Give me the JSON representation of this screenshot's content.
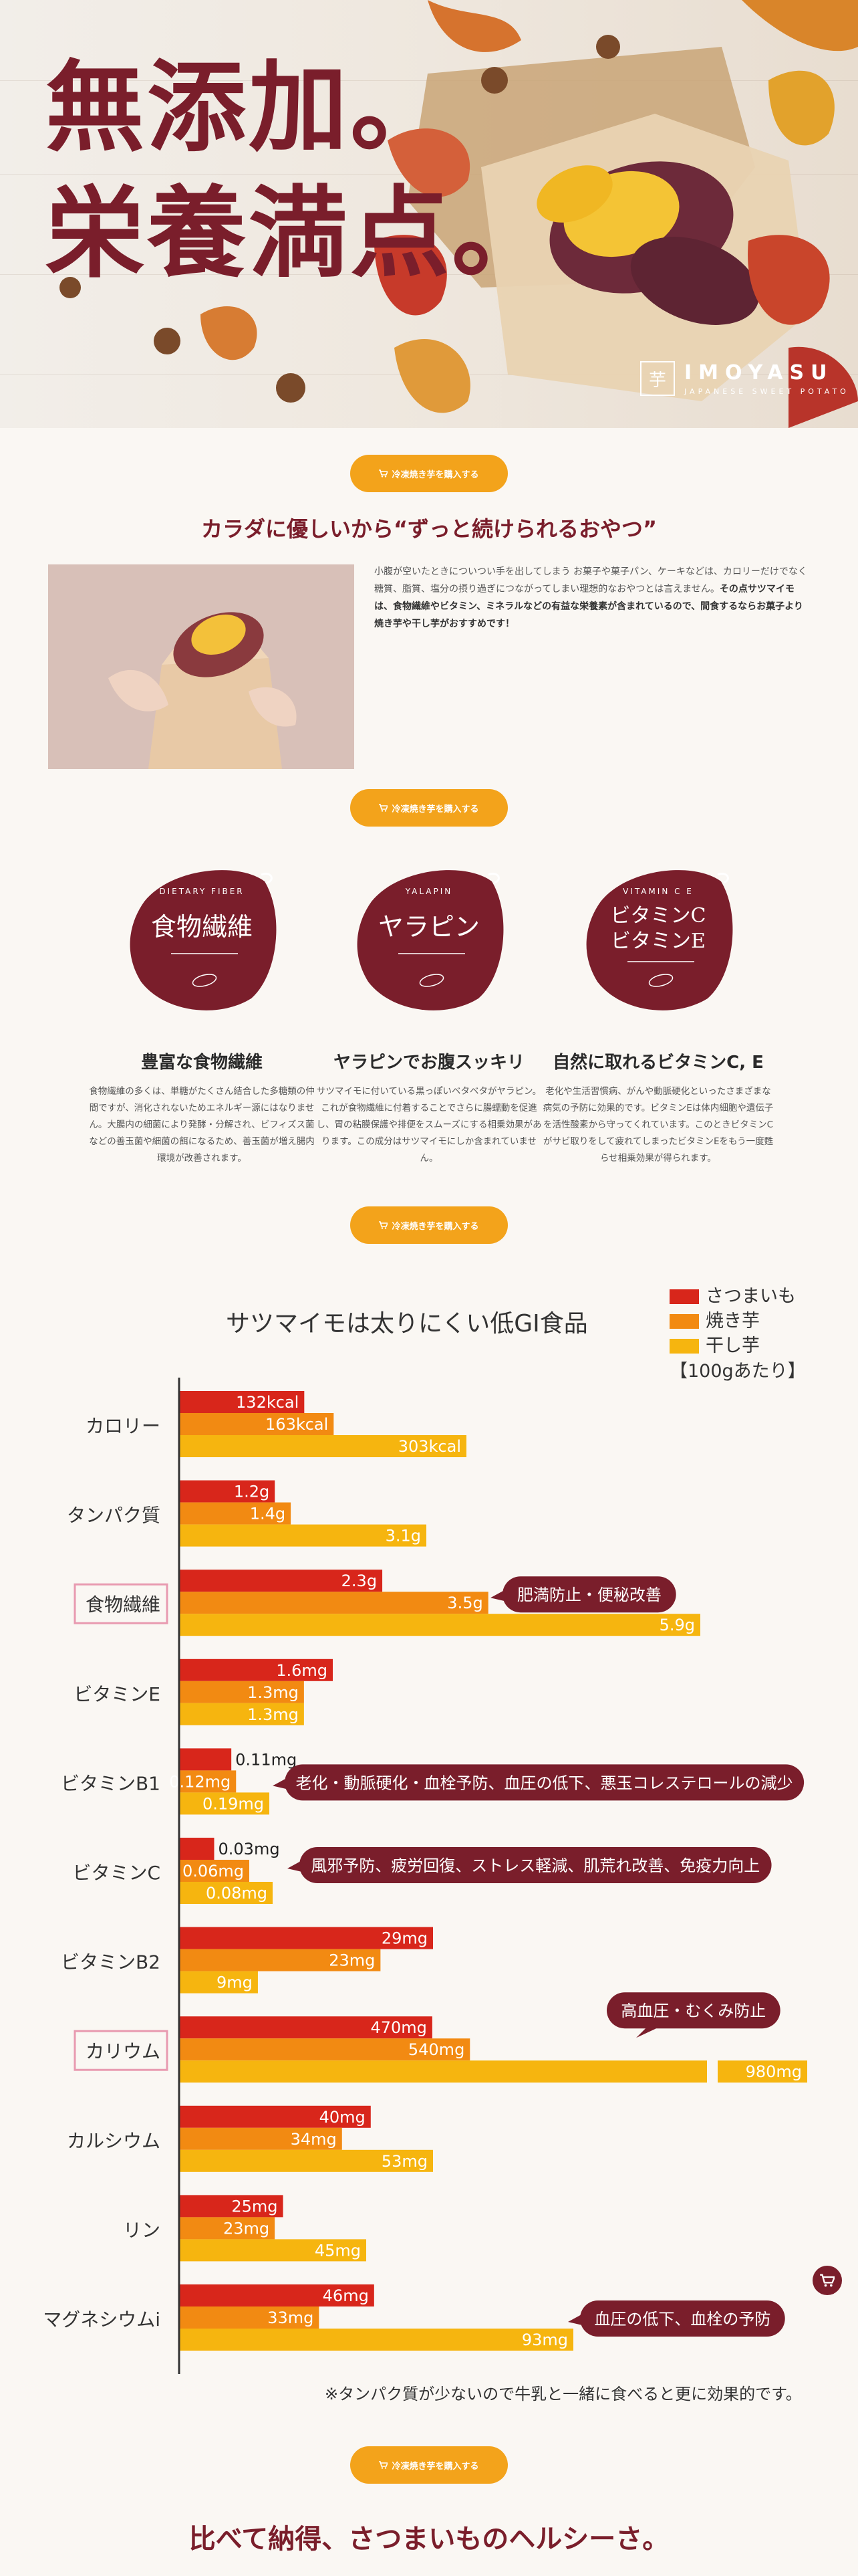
{
  "hero": {
    "title_line1": "無添加。",
    "title_line2": "栄養満点。",
    "brand_name": "IMOYASU",
    "brand_tagline": "JAPANESE SWEET POTATO",
    "brand_mark": "芋"
  },
  "cta": {
    "label": "冷凍焼き芋を購入する",
    "icon": "cart-icon"
  },
  "intro": {
    "heading": "カラダに優しいから“ずっと続けられるおやつ”",
    "body_normal": "小腹が空いたときについつい手を出してしまう お菓子や菓子パン、ケーキなどは、カロリーだけでなく糖質、脂質、塩分の摂り過ぎにつながってしまい理想的なおやつとは言えません。",
    "body_bold": "その点サツマイモは、食物繊維やビタミン、ミネラルなどの有益な栄養素が含まれているので、間食するならお菓子より焼き芋や干し芋がおすすめです！"
  },
  "features": [
    {
      "badge_top": "DIETARY FIBER",
      "badge_main": "食物繊維",
      "badge_main2": "",
      "title": "豊富な食物繊維",
      "text": "食物繊維の多くは、単糖がたくさん結合した多糖類の仲間ですが、消化されないためエネルギー源にはなりません。大腸内の細菌により発酵・分解され、ビフィズス菌などの善玉菌や細菌の餌になるため、善玉菌が増え腸内環境が改善されます。"
    },
    {
      "badge_top": "YALAPIN",
      "badge_main": "ヤラピン",
      "badge_main2": "",
      "title": "ヤラピンでお腹スッキリ",
      "text": "サツマイモに付いている黒っぽいベタベタがヤラピン。これが食物繊維に付着することでさらに腸蠕動を促進し、胃の粘膜保護や排便をスムーズにする相乗効果があります。この成分はサツマイモにしか含まれていません。"
    },
    {
      "badge_top": "VITAMIN C E",
      "badge_main": "ビタミンC",
      "badge_main2": "ビタミンE",
      "title": "自然に取れるビタミンC, E",
      "text": "老化や生活習慣病、がんや動脈硬化といったさまざまな病気の予防に効果的です。ビタミンEは体内細胞や遺伝子を活性酸素から守ってくれています。このときビタミンCがサビ取りをして疲れてしまったビタミンEをもう一度甦らせ相乗効果が得られます。"
    }
  ],
  "chart_section": {
    "note": "※タンパク質が少ないので牛乳と一緒に食べると更に効果的です。"
  },
  "chart_data": {
    "type": "bar",
    "orientation": "horizontal",
    "title": "サツマイモは太りにくい低GI食品",
    "legend_note": "【100gあたり】",
    "legend_position": "top-right",
    "series": [
      {
        "name": "さつまいも",
        "color": "#d8261b"
      },
      {
        "name": "焼き芋",
        "color": "#f28a12"
      },
      {
        "name": "干し芋",
        "color": "#f6b50f"
      }
    ],
    "categories": [
      {
        "label": "カロリー",
        "highlight": false,
        "values": [
          132,
          163,
          303
        ],
        "labels": [
          "132kcal",
          "163kcal",
          "303kcal"
        ],
        "callout": ""
      },
      {
        "label": "タンパク質",
        "highlight": false,
        "values": [
          1.2,
          1.4,
          3.1
        ],
        "labels": [
          "1.2g",
          "1.4g",
          "3.1g"
        ],
        "callout": ""
      },
      {
        "label": "食物繊維",
        "highlight": true,
        "values": [
          2.3,
          3.5,
          5.9
        ],
        "labels": [
          "2.3g",
          "3.5g",
          "5.9g"
        ],
        "callout": "肥満防止・便秘改善"
      },
      {
        "label": "ビタミンE",
        "highlight": false,
        "values": [
          1.6,
          1.3,
          1.3
        ],
        "labels": [
          "1.6mg",
          "1.3mg",
          "1.3mg"
        ],
        "callout": ""
      },
      {
        "label": "ビタミンB1",
        "highlight": false,
        "values": [
          0.11,
          0.12,
          0.19
        ],
        "labels": [
          "0.11mg",
          "0.12mg",
          "0.19mg"
        ],
        "callout": "老化・動脈硬化・血栓予防、血圧の低下、悪玉コレステロールの減少"
      },
      {
        "label": "ビタミンC",
        "highlight": false,
        "values": [
          0.03,
          0.06,
          0.08
        ],
        "labels": [
          "0.03mg",
          "0.06mg",
          "0.08mg"
        ],
        "callout": "風邪予防、疲労回復、ストレス軽減、肌荒れ改善、免疫力向上"
      },
      {
        "label": "ビタミンB2",
        "highlight": false,
        "values": [
          29,
          23,
          9
        ],
        "labels": [
          "29mg",
          "23mg",
          "9mg"
        ],
        "callout": ""
      },
      {
        "label": "カリウム",
        "highlight": true,
        "values": [
          470,
          540,
          980
        ],
        "labels": [
          "470mg",
          "540mg",
          "980mg"
        ],
        "callout": "高血圧・むくみ防止"
      },
      {
        "label": "カルシウム",
        "highlight": false,
        "values": [
          40,
          34,
          53
        ],
        "labels": [
          "40mg",
          "34mg",
          "53mg"
        ],
        "callout": ""
      },
      {
        "label": "リン",
        "highlight": false,
        "values": [
          25,
          23,
          45
        ],
        "labels": [
          "25mg",
          "23mg",
          "45mg"
        ],
        "callout": ""
      },
      {
        "label": "マグネシウムi",
        "highlight": false,
        "values": [
          46,
          33,
          93
        ],
        "labels": [
          "46mg",
          "33mg",
          "93mg"
        ],
        "callout": "血圧の低下、血栓の予防"
      }
    ]
  },
  "closing": {
    "text": "比べて納得、さつまいものヘルシーさ。"
  },
  "floating": {
    "icon": "cart-icon"
  }
}
